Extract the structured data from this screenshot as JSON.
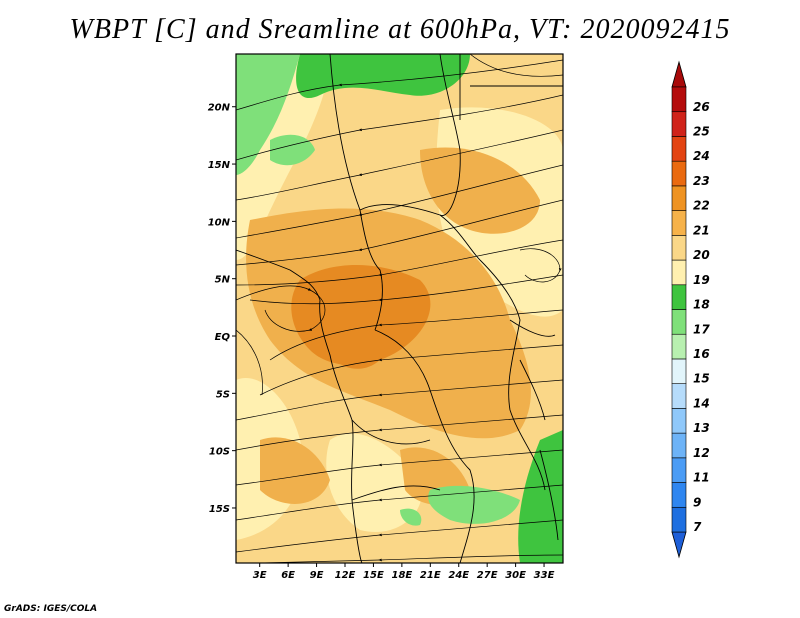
{
  "title": "WBPT [C] and Sreamline at 600hPa, VT: 2020092415",
  "credit": "GrADS: IGES/COLA",
  "map": {
    "lat_labels": [
      "20N",
      "15N",
      "10N",
      "5N",
      "EQ",
      "5S",
      "10S",
      "15S"
    ],
    "lat_values": [
      20,
      15,
      10,
      5,
      0,
      -5,
      -10,
      -15
    ],
    "lon_labels": [
      "3E",
      "6E",
      "9E",
      "12E",
      "15E",
      "18E",
      "21E",
      "24E",
      "27E",
      "30E",
      "33E"
    ],
    "lon_values": [
      3,
      6,
      9,
      12,
      15,
      18,
      21,
      24,
      27,
      30,
      33
    ],
    "lon_range": [
      0.5,
      35
    ],
    "lat_range": [
      -19.8,
      24.6
    ]
  },
  "colorbar": {
    "labels": [
      "7",
      "9",
      "11",
      "12",
      "13",
      "14",
      "15",
      "16",
      "17",
      "18",
      "19",
      "20",
      "21",
      "22",
      "23",
      "24",
      "25",
      "26"
    ],
    "colors": [
      "#1e6fe0",
      "#2f86f0",
      "#4b9cf5",
      "#6db3f7",
      "#8fc8fa",
      "#b6dcfb",
      "#e2f5fb",
      "#b8f0b0",
      "#7fe07a",
      "#3fc43f",
      "#fff0b0",
      "#fad788",
      "#f6b24a",
      "#ef9322",
      "#ea6a10",
      "#e34412",
      "#d0231a",
      "#b40c0c"
    ],
    "lower_arrow_color": "#1e5fd8",
    "upper_arrow_color": "#a80a0a"
  },
  "fill_colors": {
    "wbpt_18": "#3fc43f",
    "wbpt_17": "#7fe07a",
    "wbpt_19": "#fff0b0",
    "wbpt_20": "#fad788",
    "wbpt_21": "#f0b04c",
    "wbpt_22": "#e68a22"
  }
}
